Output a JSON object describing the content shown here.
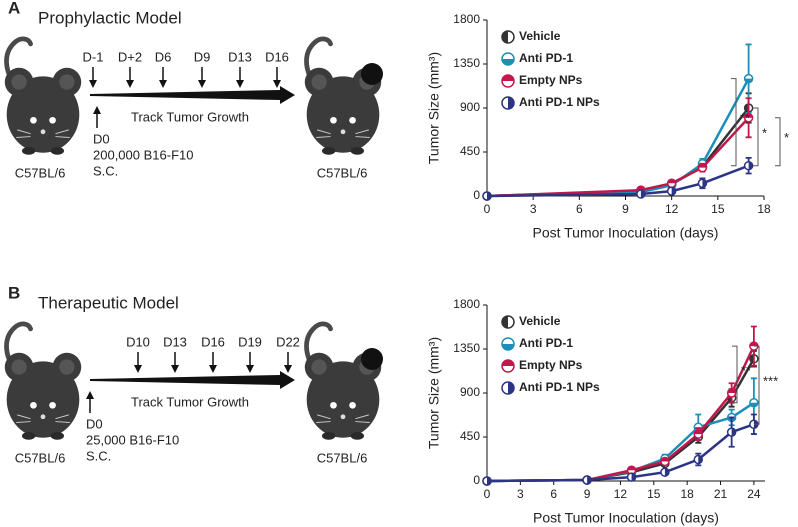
{
  "panels": [
    {
      "label": "A",
      "title": "Prophylactic Model",
      "days": [
        "D-1",
        "D+2",
        "D6",
        "D9",
        "D13",
        "D16"
      ],
      "track": "Track Tumor Growth",
      "d0": "D0",
      "dose": "200,000 B16-F10",
      "route": "S.C.",
      "mouse_left": "C57BL/6",
      "mouse_right": "C57BL/6"
    },
    {
      "label": "B",
      "title": "Therapeutic Model",
      "days": [
        "D10",
        "D13",
        "D16",
        "D19",
        "D22"
      ],
      "track": "Track Tumor Growth",
      "d0": "D0",
      "dose": "25,000 B16-F10",
      "route": "S.C.",
      "mouse_left": "C57BL/6",
      "mouse_right": "C57BL/6"
    }
  ],
  "chart_data": [
    {
      "type": "line",
      "ylabel": "Tumor Size (mm³)",
      "xlabel": "Post Tumor Inoculation (days)",
      "x": [
        0,
        10,
        12,
        14,
        17
      ],
      "xlim": [
        0,
        18
      ],
      "xticks": [
        0,
        3,
        6,
        9,
        12,
        15,
        18
      ],
      "ylim": [
        0,
        1800
      ],
      "yticks": [
        0,
        450,
        900,
        1350,
        1800
      ],
      "series": [
        {
          "name": "Vehicle",
          "color": "#333333",
          "marker": "left",
          "values": [
            0,
            50,
            120,
            300,
            900
          ],
          "errors": [
            null,
            15,
            20,
            40,
            150
          ]
        },
        {
          "name": "Anti PD-1",
          "color": "#1b8fb8",
          "marker": "bottom",
          "values": [
            0,
            40,
            110,
            330,
            1200
          ],
          "errors": [
            null,
            15,
            20,
            50,
            350
          ]
        },
        {
          "name": "Empty NPs",
          "color": "#c2174b",
          "marker": "top",
          "values": [
            0,
            60,
            130,
            290,
            800
          ],
          "errors": [
            null,
            15,
            20,
            40,
            200
          ]
        },
        {
          "name": "Anti PD-1 NPs",
          "color": "#2b3583",
          "marker": "right",
          "values": [
            0,
            20,
            50,
            130,
            310
          ],
          "errors": [
            null,
            10,
            15,
            50,
            80
          ]
        }
      ],
      "annotations": [
        {
          "label": "**",
          "y": [
            1200,
            310
          ]
        },
        {
          "label": "*",
          "y": [
            900,
            310
          ]
        },
        {
          "label": "*",
          "y": [
            800,
            310
          ]
        }
      ]
    },
    {
      "type": "line",
      "ylabel": "Tumor Size (mm³)",
      "xlabel": "Post Tumor Inoculation (days)",
      "x": [
        0,
        9,
        13,
        16,
        19,
        22,
        24
      ],
      "xlim": [
        0,
        25
      ],
      "xticks": [
        0,
        3,
        6,
        9,
        12,
        15,
        18,
        21,
        24
      ],
      "ylim": [
        0,
        1800
      ],
      "yticks": [
        0,
        450,
        900,
        1350,
        1800
      ],
      "series": [
        {
          "name": "Vehicle",
          "color": "#333333",
          "marker": "left",
          "values": [
            0,
            10,
            90,
            180,
            450,
            850,
            1250
          ],
          "errors": [
            null,
            null,
            20,
            30,
            60,
            90,
            80
          ]
        },
        {
          "name": "Anti PD-1",
          "color": "#1b8fb8",
          "marker": "bottom",
          "values": [
            0,
            10,
            100,
            230,
            550,
            650,
            800
          ],
          "errors": [
            null,
            null,
            20,
            40,
            130,
            80,
            250
          ]
        },
        {
          "name": "Empty NPs",
          "color": "#c2174b",
          "marker": "top",
          "values": [
            0,
            10,
            110,
            200,
            480,
            900,
            1380
          ],
          "errors": [
            null,
            null,
            20,
            30,
            60,
            100,
            200
          ]
        },
        {
          "name": "Anti PD-1 NPs",
          "color": "#2b3583",
          "marker": "right",
          "values": [
            0,
            10,
            40,
            90,
            220,
            500,
            580
          ],
          "errors": [
            null,
            null,
            10,
            20,
            60,
            150,
            100
          ]
        }
      ],
      "annotations": [
        {
          "label": "**",
          "y": [
            1380,
            800
          ]
        },
        {
          "label": "***",
          "y": [
            1380,
            580
          ]
        }
      ]
    }
  ]
}
